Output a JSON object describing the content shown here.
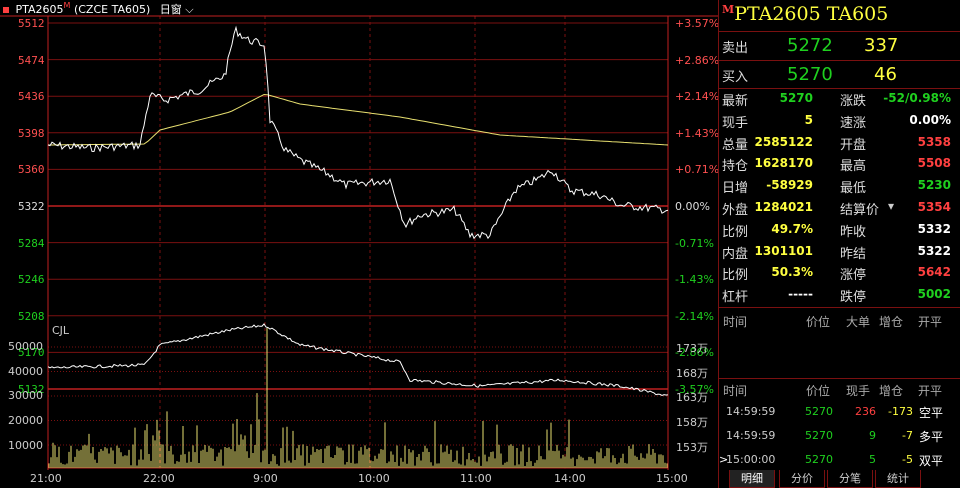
{
  "header": {
    "symbol": "PTA2605",
    "flag": "M",
    "desc": "(CZCE TA605)",
    "period": "日窗"
  },
  "price_axis": {
    "left": [
      "5512",
      "5474",
      "5436",
      "5398",
      "5360",
      "5322",
      "5284",
      "5246",
      "5208",
      "5170",
      "5132"
    ],
    "right": [
      "+3.57%",
      "+2.86%",
      "+2.14%",
      "+1.43%",
      "+0.71%",
      "0.00%",
      "-0.71%",
      "-1.43%",
      "-2.14%",
      "-2.86%",
      "-3.57%"
    ]
  },
  "volume_axis": {
    "label": "CJL",
    "left": [
      "50000",
      "40000",
      "30000",
      "20000",
      "10000"
    ],
    "right": [
      "173万",
      "168万",
      "163万",
      "158万",
      "153万"
    ]
  },
  "time_axis": [
    "21:00",
    "22:00",
    "9:00",
    "10:00",
    "11:00",
    "14:00",
    "15:00"
  ],
  "quote": {
    "flag": "M",
    "title": "PTA2605  TA605",
    "sell": {
      "label": "卖出",
      "price": "5272",
      "qty": "337"
    },
    "buy": {
      "label": "买入",
      "price": "5270",
      "qty": "46"
    },
    "left": [
      {
        "label": "最新",
        "value": "5270",
        "color": "green"
      },
      {
        "label": "现手",
        "value": "5",
        "color": "yellow"
      },
      {
        "label": "总量",
        "value": "2585122",
        "color": "yellow"
      },
      {
        "label": "持仓",
        "value": "1628170",
        "color": "yellow"
      },
      {
        "label": "日增",
        "value": "-58929",
        "color": "yellow"
      },
      {
        "label": "外盘",
        "value": "1284021",
        "color": "yellow"
      },
      {
        "label": "比例",
        "value": "49.7%",
        "color": "yellow"
      },
      {
        "label": "内盘",
        "value": "1301101",
        "color": "yellow"
      },
      {
        "label": "比例",
        "value": "50.3%",
        "color": "yellow"
      },
      {
        "label": "杠杆",
        "value": "-----",
        "color": "white"
      }
    ],
    "right": [
      {
        "label": "涨跌",
        "value": "-52/0.98%",
        "color": "green"
      },
      {
        "label": "速涨",
        "value": "0.00%",
        "color": "white"
      },
      {
        "label": "开盘",
        "value": "5358",
        "color": "red"
      },
      {
        "label": "最高",
        "value": "5508",
        "color": "red"
      },
      {
        "label": "最低",
        "value": "5230",
        "color": "green"
      },
      {
        "label": "结算价",
        "value": "5354",
        "color": "red"
      },
      {
        "label": "昨收",
        "value": "5332",
        "color": "white"
      },
      {
        "label": "昨结",
        "value": "5322",
        "color": "white"
      },
      {
        "label": "涨停",
        "value": "5642",
        "color": "red"
      },
      {
        "label": "跌停",
        "value": "5002",
        "color": "green"
      }
    ]
  },
  "orders": {
    "headers": [
      "时间",
      "价位",
      "大单",
      "增仓",
      "开平"
    ]
  },
  "ticks": {
    "headers": [
      "时间",
      "价位",
      "现手",
      "增仓",
      "开平"
    ],
    "rows": [
      {
        "time": "14:59:59",
        "price": "5270",
        "qty": "236",
        "qty_color": "red",
        "chg": "-173",
        "type": "空平",
        "type_color": "white"
      },
      {
        "time": "14:59:59",
        "price": "5270",
        "qty": "9",
        "qty_color": "green",
        "chg": "-7",
        "type": "多平",
        "type_color": "white"
      },
      {
        "time": "15:00:00",
        "price": "5270",
        "qty": "5",
        "qty_color": "green",
        "chg": "-5",
        "type": "双平",
        "type_color": "white"
      }
    ]
  },
  "tabs": [
    "明细",
    "分价",
    "分笔",
    "统计"
  ],
  "colors": {
    "up": "#ff4040",
    "down": "#1fd01f",
    "grid": "#7a1010",
    "avg": "#e8e070",
    "vol": "#e8e070"
  }
}
